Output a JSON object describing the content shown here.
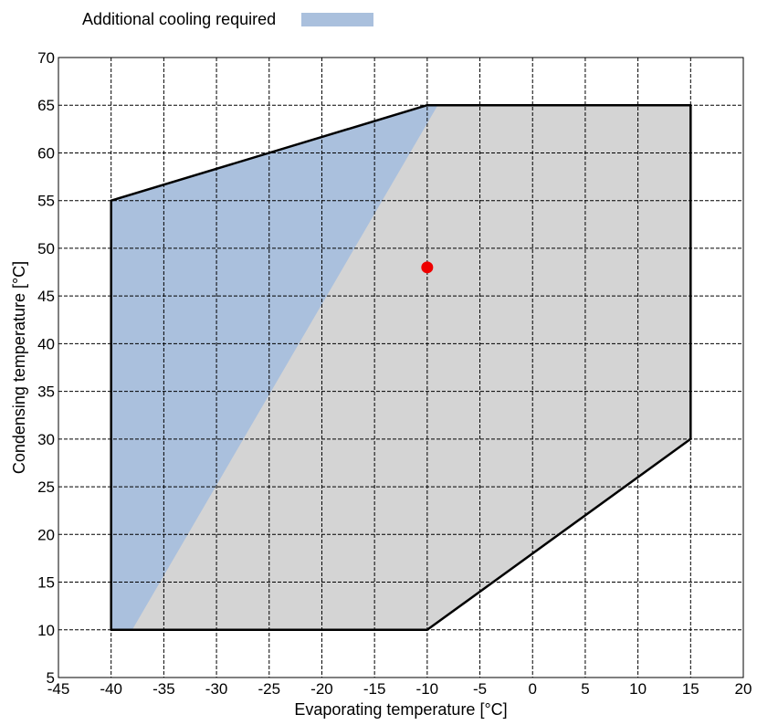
{
  "legend": {
    "label": "Additional cooling required",
    "color": "#aac0dd"
  },
  "chart_data": {
    "type": "area",
    "title": "",
    "xlabel": "Evaporating temperature [°C]",
    "ylabel": "Condensing temperature [°C]",
    "xlim": [
      -45,
      20
    ],
    "ylim": [
      5,
      70
    ],
    "xticks": [
      "-45",
      "-40",
      "-35",
      "-30",
      "-25",
      "-20",
      "-15",
      "-10",
      "-5",
      "0",
      "5",
      "10",
      "15",
      "20"
    ],
    "yticks": [
      "5",
      "10",
      "15",
      "20",
      "25",
      "30",
      "35",
      "40",
      "45",
      "50",
      "55",
      "60",
      "65",
      "70"
    ],
    "grid": true,
    "legend_position": "top-left",
    "envelope": {
      "points": [
        [
          -40,
          10
        ],
        [
          -40,
          55
        ],
        [
          -10,
          65
        ],
        [
          15,
          65
        ],
        [
          15,
          30
        ],
        [
          -10,
          10
        ]
      ],
      "fill": "#d4d4d4",
      "stroke": "#000000"
    },
    "cooling_region": {
      "name": "Additional cooling required",
      "points": [
        [
          -40,
          10
        ],
        [
          -40,
          55
        ],
        [
          -10,
          65
        ],
        [
          -9,
          65
        ],
        [
          -38,
          10
        ]
      ],
      "fill": "#aac0dd"
    },
    "operating_point": {
      "x": -10,
      "y": 48,
      "color": "#ee0000"
    }
  }
}
